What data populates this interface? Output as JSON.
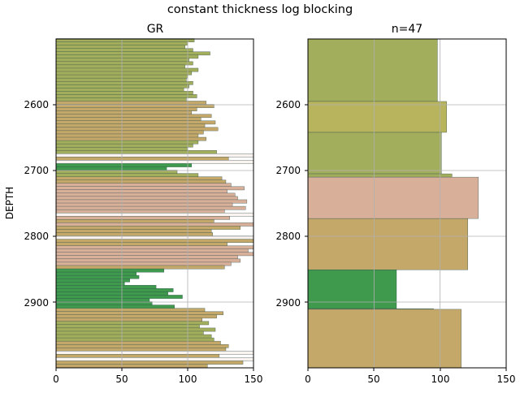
{
  "title": "constant thickness log blocking",
  "colors": {
    "shale": "#c4a86a",
    "sand_light": "#a3ae5c",
    "sand_mid": "#b8b45e",
    "sand_green": "#3f9a4e",
    "blush": "#d8b09a",
    "white_gap": "#fbf3ef",
    "grid": "#b0b0b0",
    "outline": "#2b4a4a"
  },
  "chart_data": [
    {
      "type": "bar",
      "orientation": "horizontal",
      "title": "GR",
      "xlabel": "",
      "ylabel": "DEPTH",
      "xlim": [
        0,
        150
      ],
      "ylim": [
        3000,
        2500
      ],
      "x_ticks": [
        "0",
        "50",
        "100",
        "150"
      ],
      "y_ticks": [
        "2600",
        "2700",
        "2800",
        "2900"
      ],
      "grid": true,
      "samples": [
        {
          "depth": 2502,
          "value": 105,
          "facies": "sand_light"
        },
        {
          "depth": 2507,
          "value": 100,
          "facies": "sand_light"
        },
        {
          "depth": 2512,
          "value": 98,
          "facies": "sand_light"
        },
        {
          "depth": 2517,
          "value": 104,
          "facies": "sand_light"
        },
        {
          "depth": 2522,
          "value": 117,
          "facies": "sand_light"
        },
        {
          "depth": 2527,
          "value": 108,
          "facies": "sand_light"
        },
        {
          "depth": 2532,
          "value": 101,
          "facies": "sand_light"
        },
        {
          "depth": 2537,
          "value": 104,
          "facies": "sand_light"
        },
        {
          "depth": 2542,
          "value": 98,
          "facies": "sand_light"
        },
        {
          "depth": 2547,
          "value": 108,
          "facies": "sand_light"
        },
        {
          "depth": 2552,
          "value": 103,
          "facies": "sand_light"
        },
        {
          "depth": 2557,
          "value": 100,
          "facies": "sand_light"
        },
        {
          "depth": 2562,
          "value": 99,
          "facies": "sand_light"
        },
        {
          "depth": 2567,
          "value": 104,
          "facies": "sand_light"
        },
        {
          "depth": 2572,
          "value": 101,
          "facies": "sand_light"
        },
        {
          "depth": 2577,
          "value": 97,
          "facies": "sand_light"
        },
        {
          "depth": 2582,
          "value": 104,
          "facies": "sand_light"
        },
        {
          "depth": 2587,
          "value": 107,
          "facies": "sand_light"
        },
        {
          "depth": 2592,
          "value": 99,
          "facies": "sand_light"
        },
        {
          "depth": 2597,
          "value": 114,
          "facies": "shale"
        },
        {
          "depth": 2602,
          "value": 120,
          "facies": "shale"
        },
        {
          "depth": 2607,
          "value": 107,
          "facies": "shale"
        },
        {
          "depth": 2612,
          "value": 103,
          "facies": "shale"
        },
        {
          "depth": 2617,
          "value": 118,
          "facies": "shale"
        },
        {
          "depth": 2622,
          "value": 110,
          "facies": "shale"
        },
        {
          "depth": 2627,
          "value": 121,
          "facies": "shale"
        },
        {
          "depth": 2632,
          "value": 113,
          "facies": "shale"
        },
        {
          "depth": 2637,
          "value": 123,
          "facies": "shale"
        },
        {
          "depth": 2642,
          "value": 112,
          "facies": "shale"
        },
        {
          "depth": 2647,
          "value": 108,
          "facies": "shale"
        },
        {
          "depth": 2652,
          "value": 114,
          "facies": "shale"
        },
        {
          "depth": 2657,
          "value": 108,
          "facies": "sand_light"
        },
        {
          "depth": 2662,
          "value": 104,
          "facies": "sand_light"
        },
        {
          "depth": 2667,
          "value": 100,
          "facies": "sand_light"
        },
        {
          "depth": 2672,
          "value": 122,
          "facies": "sand_light"
        },
        {
          "depth": 2677,
          "value": 150,
          "facies": "white_gap"
        },
        {
          "depth": 2682,
          "value": 131,
          "facies": "shale"
        },
        {
          "depth": 2687,
          "value": 150,
          "facies": "white_gap"
        },
        {
          "depth": 2692,
          "value": 103,
          "facies": "sand_green"
        },
        {
          "depth": 2697,
          "value": 84,
          "facies": "sand_green"
        },
        {
          "depth": 2702,
          "value": 92,
          "facies": "sand_light"
        },
        {
          "depth": 2707,
          "value": 108,
          "facies": "sand_light"
        },
        {
          "depth": 2712,
          "value": 126,
          "facies": "shale"
        },
        {
          "depth": 2717,
          "value": 129,
          "facies": "shale"
        },
        {
          "depth": 2722,
          "value": 133,
          "facies": "blush"
        },
        {
          "depth": 2727,
          "value": 143,
          "facies": "blush"
        },
        {
          "depth": 2732,
          "value": 130,
          "facies": "blush"
        },
        {
          "depth": 2737,
          "value": 136,
          "facies": "blush"
        },
        {
          "depth": 2742,
          "value": 138,
          "facies": "blush"
        },
        {
          "depth": 2747,
          "value": 145,
          "facies": "blush"
        },
        {
          "depth": 2752,
          "value": 134,
          "facies": "blush"
        },
        {
          "depth": 2757,
          "value": 144,
          "facies": "blush"
        },
        {
          "depth": 2762,
          "value": 128,
          "facies": "blush"
        },
        {
          "depth": 2767,
          "value": 150,
          "facies": "white_gap"
        },
        {
          "depth": 2772,
          "value": 132,
          "facies": "blush"
        },
        {
          "depth": 2777,
          "value": 120,
          "facies": "shale"
        },
        {
          "depth": 2782,
          "value": 150,
          "facies": "blush"
        },
        {
          "depth": 2787,
          "value": 140,
          "facies": "shale"
        },
        {
          "depth": 2792,
          "value": 118,
          "facies": "shale"
        },
        {
          "depth": 2797,
          "value": 119,
          "facies": "shale"
        },
        {
          "depth": 2802,
          "value": 150,
          "facies": "white_gap"
        },
        {
          "depth": 2807,
          "value": 150,
          "facies": "shale"
        },
        {
          "depth": 2812,
          "value": 130,
          "facies": "shale"
        },
        {
          "depth": 2817,
          "value": 150,
          "facies": "blush"
        },
        {
          "depth": 2822,
          "value": 146,
          "facies": "blush"
        },
        {
          "depth": 2827,
          "value": 150,
          "facies": "blush"
        },
        {
          "depth": 2832,
          "value": 138,
          "facies": "blush"
        },
        {
          "depth": 2837,
          "value": 140,
          "facies": "blush"
        },
        {
          "depth": 2842,
          "value": 133,
          "facies": "blush"
        },
        {
          "depth": 2847,
          "value": 128,
          "facies": "shale"
        },
        {
          "depth": 2852,
          "value": 82,
          "facies": "sand_green"
        },
        {
          "depth": 2857,
          "value": 61,
          "facies": "sand_green"
        },
        {
          "depth": 2862,
          "value": 63,
          "facies": "sand_green"
        },
        {
          "depth": 2867,
          "value": 56,
          "facies": "sand_green"
        },
        {
          "depth": 2872,
          "value": 52,
          "facies": "sand_green"
        },
        {
          "depth": 2877,
          "value": 76,
          "facies": "sand_green"
        },
        {
          "depth": 2882,
          "value": 89,
          "facies": "sand_green"
        },
        {
          "depth": 2887,
          "value": 85,
          "facies": "sand_green"
        },
        {
          "depth": 2892,
          "value": 96,
          "facies": "sand_green"
        },
        {
          "depth": 2897,
          "value": 71,
          "facies": "sand_green"
        },
        {
          "depth": 2902,
          "value": 73,
          "facies": "sand_green"
        },
        {
          "depth": 2907,
          "value": 90,
          "facies": "sand_green"
        },
        {
          "depth": 2912,
          "value": 113,
          "facies": "shale"
        },
        {
          "depth": 2917,
          "value": 127,
          "facies": "shale"
        },
        {
          "depth": 2922,
          "value": 122,
          "facies": "shale"
        },
        {
          "depth": 2927,
          "value": 111,
          "facies": "shale"
        },
        {
          "depth": 2932,
          "value": 116,
          "facies": "sand_light"
        },
        {
          "depth": 2937,
          "value": 109,
          "facies": "sand_light"
        },
        {
          "depth": 2942,
          "value": 121,
          "facies": "sand_light"
        },
        {
          "depth": 2947,
          "value": 112,
          "facies": "sand_light"
        },
        {
          "depth": 2952,
          "value": 118,
          "facies": "sand_light"
        },
        {
          "depth": 2957,
          "value": 120,
          "facies": "sand_light"
        },
        {
          "depth": 2962,
          "value": 125,
          "facies": "shale"
        },
        {
          "depth": 2967,
          "value": 131,
          "facies": "shale"
        },
        {
          "depth": 2972,
          "value": 129,
          "facies": "shale"
        },
        {
          "depth": 2977,
          "value": 150,
          "facies": "white_gap"
        },
        {
          "depth": 2982,
          "value": 124,
          "facies": "shale"
        },
        {
          "depth": 2987,
          "value": 150,
          "facies": "white_gap"
        },
        {
          "depth": 2992,
          "value": 142,
          "facies": "shale"
        },
        {
          "depth": 2997,
          "value": 115,
          "facies": "shale"
        }
      ]
    },
    {
      "type": "bar",
      "orientation": "horizontal",
      "title": "n=47",
      "xlabel": "",
      "ylabel": "",
      "xlim": [
        0,
        150
      ],
      "ylim": [
        3000,
        2500
      ],
      "x_ticks": [
        "0",
        "50",
        "100",
        "150"
      ],
      "y_ticks": [
        "2600",
        "2700",
        "2800",
        "2900"
      ],
      "grid": true,
      "blocks": [
        {
          "top": 2500,
          "base": 2595,
          "value": 98,
          "facies": "sand_light"
        },
        {
          "top": 2595,
          "base": 2642,
          "value": 105,
          "facies": "sand_mid"
        },
        {
          "top": 2642,
          "base": 2705,
          "value": 101,
          "facies": "sand_light"
        },
        {
          "top": 2705,
          "base": 2710,
          "value": 109,
          "facies": "sand_light"
        },
        {
          "top": 2710,
          "base": 2773,
          "value": 129,
          "facies": "blush"
        },
        {
          "top": 2773,
          "base": 2851,
          "value": 121,
          "facies": "shale"
        },
        {
          "top": 2851,
          "base": 2910,
          "value": 67,
          "facies": "sand_green"
        },
        {
          "top": 2910,
          "base": 2911,
          "value": 95,
          "facies": "sand_light"
        },
        {
          "top": 2911,
          "base": 3000,
          "value": 116,
          "facies": "shale"
        }
      ]
    }
  ]
}
